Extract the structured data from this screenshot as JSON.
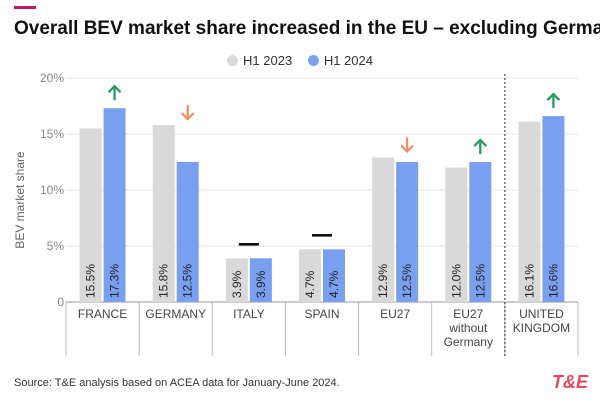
{
  "header": {
    "title": "Overall BEV market share increased in the EU – excluding Germany"
  },
  "legend": {
    "items": [
      {
        "label": "H1 2023",
        "color": "#d9d9d9"
      },
      {
        "label": "H1 2024",
        "color": "#79a0f0"
      }
    ]
  },
  "footer": {
    "source": "Source: T&E analysis based on ACEA data for January-June 2024.",
    "logo": "T&E"
  },
  "colors": {
    "accent": "#c2185b",
    "h1_2023": "#d9d9d9",
    "h1_2024": "#79a0f0",
    "up_arrow": "#1b9a5a",
    "down_arrow": "#f28b5b",
    "flat_marker": "#111111",
    "logo": "#e8485f"
  },
  "chart_data": {
    "type": "bar",
    "title": "Overall BEV market share increased in the EU – excluding Germany",
    "ylabel": "BEV market share",
    "xlabel": "",
    "ylim": [
      0,
      20
    ],
    "yticks": [
      0,
      5,
      10,
      15,
      20
    ],
    "ytick_labels": [
      "0",
      "5%",
      "10%",
      "15%",
      "20%"
    ],
    "grid": true,
    "legend_position": "top-center",
    "categories": [
      "FRANCE",
      "GERMANY",
      "ITALY",
      "SPAIN",
      "EU27",
      "EU27 without Germany",
      "UNITED KINGDOM"
    ],
    "category_lines": [
      [
        "FRANCE"
      ],
      [
        "GERMANY"
      ],
      [
        "ITALY"
      ],
      [
        "SPAIN"
      ],
      [
        "EU27"
      ],
      [
        "EU27",
        "without",
        "Germany"
      ],
      [
        "UNITED",
        "KINGDOM"
      ]
    ],
    "series": [
      {
        "name": "H1 2023",
        "values": [
          15.5,
          15.8,
          3.9,
          4.7,
          12.9,
          12.0,
          16.1
        ],
        "labels": [
          "15.5%",
          "15.8%",
          "3.9%",
          "4.7%",
          "12.9%",
          "12.0%",
          "16.1%"
        ]
      },
      {
        "name": "H1 2024",
        "values": [
          17.3,
          12.5,
          3.9,
          4.7,
          12.5,
          12.5,
          16.6
        ],
        "labels": [
          "17.3%",
          "12.5%",
          "3.9%",
          "4.7%",
          "12.5%",
          "12.5%",
          "16.6%"
        ]
      }
    ],
    "trend_markers": [
      "up",
      "down",
      "flat",
      "flat",
      "down",
      "up",
      "up"
    ],
    "separator_before_category": 6
  }
}
